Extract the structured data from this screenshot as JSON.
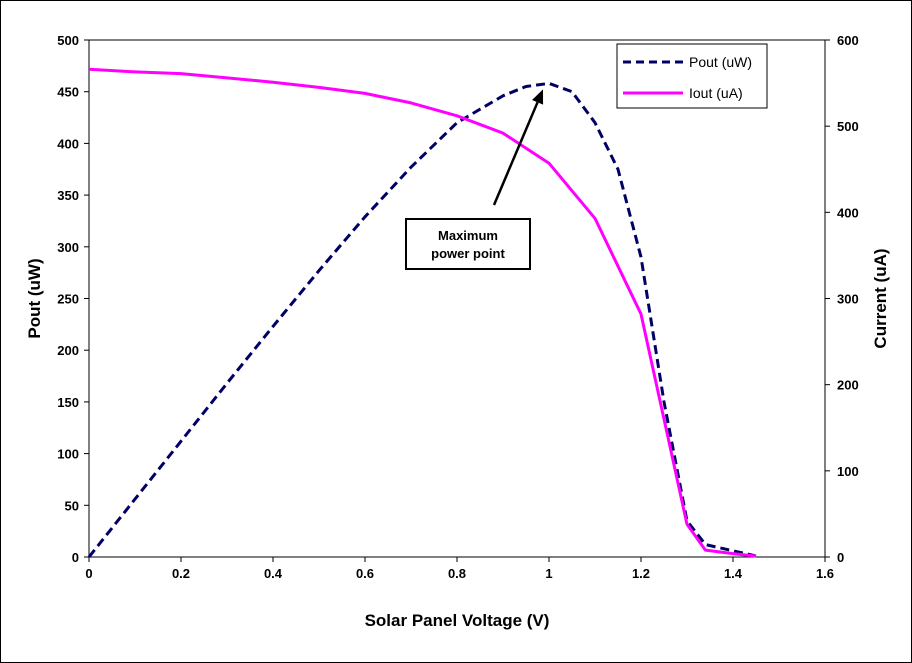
{
  "chart_data": {
    "type": "line",
    "xlabel": "Solar Panel Voltage (V)",
    "ylabel": "Pout (uW)",
    "y2label": "Current (uA)",
    "xlim": [
      0,
      1.6
    ],
    "ylim": [
      0,
      500
    ],
    "y2lim": [
      0,
      600
    ],
    "x_ticks": [
      "0",
      "0.2",
      "0.4",
      "0.6",
      "0.8",
      "1",
      "1.2",
      "1.4",
      "1.6"
    ],
    "y_ticks": [
      "0",
      "50",
      "100",
      "150",
      "200",
      "250",
      "300",
      "350",
      "400",
      "450",
      "500"
    ],
    "y2_ticks": [
      "0",
      "100",
      "200",
      "300",
      "400",
      "500",
      "600"
    ],
    "grid": false,
    "legend_position": "top-right",
    "series": [
      {
        "name": "Pout (uW)",
        "axis": "left",
        "style": "dashed",
        "color": "#000066",
        "x": [
          0,
          0.1,
          0.2,
          0.3,
          0.4,
          0.5,
          0.6,
          0.7,
          0.8,
          0.9,
          0.95,
          1.0,
          1.05,
          1.1,
          1.15,
          1.2,
          1.25,
          1.3,
          1.34,
          1.4,
          1.45
        ],
        "y": [
          0,
          56,
          112,
          168,
          223,
          277,
          329,
          377,
          420,
          446,
          455,
          458,
          450,
          420,
          375,
          290,
          150,
          35,
          12,
          6,
          1
        ]
      },
      {
        "name": "Iout (uA)",
        "axis": "right",
        "style": "solid",
        "color": "#ff00ff",
        "x": [
          0,
          0.1,
          0.2,
          0.3,
          0.4,
          0.5,
          0.6,
          0.7,
          0.8,
          0.9,
          1.0,
          1.1,
          1.2,
          1.25,
          1.3,
          1.34,
          1.4,
          1.45
        ],
        "y": [
          566,
          563,
          561,
          556,
          551,
          545,
          538,
          527,
          512,
          492,
          457,
          393,
          282,
          160,
          38,
          8,
          4,
          1
        ]
      }
    ],
    "annotation": {
      "text_line1": "Maximum",
      "text_line2": "power point",
      "point": [
        1.0,
        458
      ]
    }
  }
}
